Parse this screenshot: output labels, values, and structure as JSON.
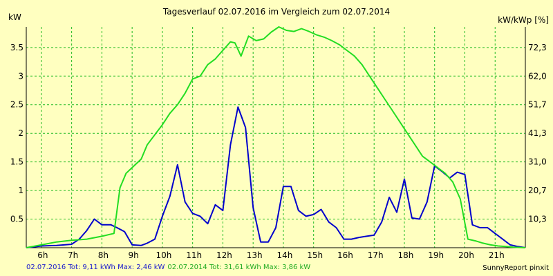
{
  "chart_data": {
    "type": "line",
    "title": "Tagesverlauf 02.07.2016 im Vergleich zum 02.07.2014",
    "ylabel_left": "kW",
    "ylabel_right": "kW/kWp [%]",
    "ylim": [
      0,
      3.86
    ],
    "xlim": [
      5.5,
      22.0
    ],
    "grid": true,
    "x_tick_labels": [
      "6h",
      "7h",
      "8h",
      "9h",
      "10h",
      "11h",
      "12h",
      "13h",
      "14h",
      "15h",
      "16h",
      "17h",
      "18h",
      "19h",
      "20h",
      "21h"
    ],
    "x_tick_values": [
      6,
      7,
      8,
      9,
      10,
      11,
      12,
      13,
      14,
      15,
      16,
      17,
      18,
      19,
      20,
      21
    ],
    "y_ticks_left": [
      {
        "v": 0.5,
        "label": "0.5"
      },
      {
        "v": 1,
        "label": "1"
      },
      {
        "v": 1.5,
        "label": "1.5"
      },
      {
        "v": 2,
        "label": "2"
      },
      {
        "v": 2.5,
        "label": "2.5"
      },
      {
        "v": 3,
        "label": "3"
      },
      {
        "v": 3.5,
        "label": "3.5"
      }
    ],
    "y_ticks_right": [
      {
        "v": 0.5,
        "label": "10,3"
      },
      {
        "v": 1,
        "label": "20,7"
      },
      {
        "v": 1.5,
        "label": "31,0"
      },
      {
        "v": 2,
        "label": "41,3"
      },
      {
        "v": 2.5,
        "label": "51,7"
      },
      {
        "v": 3,
        "label": "62,0"
      },
      {
        "v": 3.5,
        "label": "72,3"
      }
    ],
    "series": [
      {
        "name": "02.07.2016",
        "color": "#0000cc",
        "points": [
          [
            5.5,
            0.0
          ],
          [
            6.0,
            0.03
          ],
          [
            6.5,
            0.04
          ],
          [
            7.0,
            0.06
          ],
          [
            7.25,
            0.15
          ],
          [
            7.5,
            0.3
          ],
          [
            7.75,
            0.5
          ],
          [
            8.0,
            0.4
          ],
          [
            8.3,
            0.4
          ],
          [
            8.5,
            0.35
          ],
          [
            8.75,
            0.28
          ],
          [
            9.0,
            0.05
          ],
          [
            9.3,
            0.04
          ],
          [
            9.5,
            0.08
          ],
          [
            9.75,
            0.15
          ],
          [
            10.0,
            0.55
          ],
          [
            10.25,
            0.9
          ],
          [
            10.5,
            1.45
          ],
          [
            10.75,
            0.8
          ],
          [
            11.0,
            0.6
          ],
          [
            11.25,
            0.55
          ],
          [
            11.5,
            0.42
          ],
          [
            11.75,
            0.75
          ],
          [
            12.0,
            0.65
          ],
          [
            12.25,
            1.8
          ],
          [
            12.5,
            2.46
          ],
          [
            12.75,
            2.1
          ],
          [
            13.0,
            0.7
          ],
          [
            13.25,
            0.1
          ],
          [
            13.5,
            0.1
          ],
          [
            13.75,
            0.35
          ],
          [
            14.0,
            1.07
          ],
          [
            14.25,
            1.07
          ],
          [
            14.5,
            0.65
          ],
          [
            14.75,
            0.55
          ],
          [
            15.0,
            0.58
          ],
          [
            15.25,
            0.67
          ],
          [
            15.5,
            0.45
          ],
          [
            15.75,
            0.35
          ],
          [
            16.0,
            0.15
          ],
          [
            16.25,
            0.15
          ],
          [
            16.5,
            0.18
          ],
          [
            16.75,
            0.2
          ],
          [
            17.0,
            0.22
          ],
          [
            17.25,
            0.45
          ],
          [
            17.5,
            0.88
          ],
          [
            17.75,
            0.62
          ],
          [
            18.0,
            1.2
          ],
          [
            18.25,
            0.52
          ],
          [
            18.5,
            0.5
          ],
          [
            18.75,
            0.8
          ],
          [
            19.0,
            1.43
          ],
          [
            19.25,
            1.33
          ],
          [
            19.5,
            1.22
          ],
          [
            19.75,
            1.32
          ],
          [
            20.0,
            1.28
          ],
          [
            20.25,
            0.4
          ],
          [
            20.5,
            0.35
          ],
          [
            20.75,
            0.35
          ],
          [
            21.0,
            0.25
          ],
          [
            21.25,
            0.15
          ],
          [
            21.5,
            0.05
          ],
          [
            21.75,
            0.02
          ],
          [
            22.0,
            0.0
          ]
        ]
      },
      {
        "name": "02.07.2014",
        "color": "#22dd22",
        "points": [
          [
            5.5,
            0.0
          ],
          [
            6.0,
            0.05
          ],
          [
            6.5,
            0.1
          ],
          [
            7.0,
            0.13
          ],
          [
            7.5,
            0.15
          ],
          [
            8.0,
            0.2
          ],
          [
            8.4,
            0.25
          ],
          [
            8.6,
            1.05
          ],
          [
            8.8,
            1.3
          ],
          [
            9.0,
            1.4
          ],
          [
            9.3,
            1.55
          ],
          [
            9.5,
            1.8
          ],
          [
            10.0,
            2.15
          ],
          [
            10.25,
            2.35
          ],
          [
            10.5,
            2.5
          ],
          [
            10.75,
            2.7
          ],
          [
            11.0,
            2.95
          ],
          [
            11.25,
            3.0
          ],
          [
            11.5,
            3.2
          ],
          [
            11.75,
            3.3
          ],
          [
            12.0,
            3.45
          ],
          [
            12.25,
            3.6
          ],
          [
            12.4,
            3.58
          ],
          [
            12.6,
            3.35
          ],
          [
            12.85,
            3.7
          ],
          [
            13.1,
            3.62
          ],
          [
            13.35,
            3.65
          ],
          [
            13.6,
            3.77
          ],
          [
            13.85,
            3.86
          ],
          [
            14.1,
            3.8
          ],
          [
            14.35,
            3.78
          ],
          [
            14.6,
            3.83
          ],
          [
            14.85,
            3.78
          ],
          [
            15.1,
            3.72
          ],
          [
            15.35,
            3.68
          ],
          [
            15.6,
            3.62
          ],
          [
            15.85,
            3.55
          ],
          [
            16.1,
            3.45
          ],
          [
            16.35,
            3.35
          ],
          [
            16.6,
            3.2
          ],
          [
            16.85,
            3.0
          ],
          [
            17.1,
            2.8
          ],
          [
            17.35,
            2.6
          ],
          [
            17.6,
            2.4
          ],
          [
            17.85,
            2.2
          ],
          [
            18.1,
            2.0
          ],
          [
            18.35,
            1.8
          ],
          [
            18.6,
            1.6
          ],
          [
            18.85,
            1.5
          ],
          [
            19.1,
            1.4
          ],
          [
            19.35,
            1.3
          ],
          [
            19.6,
            1.15
          ],
          [
            19.85,
            0.85
          ],
          [
            20.1,
            0.15
          ],
          [
            20.35,
            0.12
          ],
          [
            20.6,
            0.08
          ],
          [
            20.85,
            0.05
          ],
          [
            21.1,
            0.03
          ],
          [
            21.35,
            0.02
          ],
          [
            21.6,
            0.01
          ],
          [
            22.0,
            0.0
          ]
        ]
      }
    ]
  },
  "footer": {
    "s1_text": "02.07.2016 Tot: 9,11 kWh Max: 2,46 kW",
    "s2_text": "02.07.2014 Tot: 31,61 kWh Max: 3,86 kW"
  },
  "credit": "SunnyReport pinxit",
  "colors": {
    "background": "#ffffc0",
    "plot_background": "#ffffc0",
    "grid": "#22bb22",
    "axis": "#000000"
  }
}
